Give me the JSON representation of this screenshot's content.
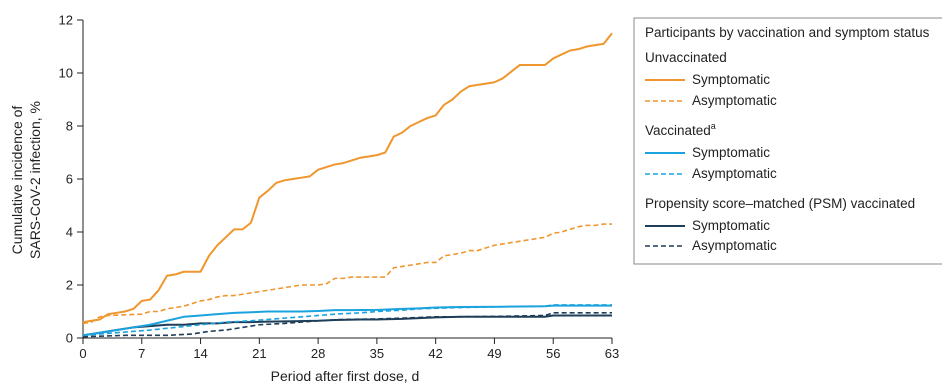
{
  "chart_data": {
    "type": "line",
    "xlabel": "Period after first dose, d",
    "ylabel_line1": "Cumulative incidence of",
    "ylabel_line2": "SARS-CoV-2 infection, %",
    "xticks": [
      "0",
      "7",
      "14",
      "21",
      "28",
      "35",
      "42",
      "49",
      "56",
      "63"
    ],
    "yticks": [
      "0",
      "2",
      "4",
      "6",
      "8",
      "10",
      "12"
    ],
    "xlim": [
      0,
      63
    ],
    "ylim": [
      0,
      12
    ],
    "grid": false,
    "legend_placement": "right",
    "legend": {
      "title": "Participants by vaccination and symptom status",
      "groups": [
        {
          "label": "Unvaccinated",
          "superscript": ""
        },
        {
          "label": "Vaccinated",
          "superscript": "a"
        },
        {
          "label": "Propensity score–matched (PSM) vaccinated",
          "superscript": ""
        }
      ],
      "entry_symptomatic": "Symptomatic",
      "entry_asymptomatic": "Asymptomatic"
    },
    "series": [
      {
        "name": "Symptomatic",
        "group": "Unvaccinated",
        "color": "#F0962E",
        "dash": "solid",
        "x": [
          0,
          2,
          3,
          4,
          5,
          6,
          7,
          8,
          9,
          10,
          11,
          12,
          13,
          14,
          15,
          16,
          17,
          18,
          19,
          20,
          21,
          22,
          23,
          24,
          25,
          26,
          27,
          28,
          29,
          30,
          31,
          32,
          33,
          34,
          35,
          36,
          37,
          38,
          39,
          40,
          41,
          42,
          43,
          44,
          45,
          46,
          47,
          48,
          49,
          50,
          51,
          52,
          53,
          54,
          55,
          56,
          57,
          58,
          59,
          60,
          61,
          62,
          63
        ],
        "y": [
          0.6,
          0.7,
          0.9,
          0.95,
          1.0,
          1.1,
          1.4,
          1.45,
          1.8,
          2.35,
          2.4,
          2.5,
          2.5,
          2.5,
          3.1,
          3.5,
          3.8,
          4.1,
          4.1,
          4.35,
          5.3,
          5.55,
          5.85,
          5.95,
          6.0,
          6.05,
          6.1,
          6.35,
          6.45,
          6.55,
          6.6,
          6.7,
          6.8,
          6.85,
          6.9,
          7.0,
          7.6,
          7.75,
          8.0,
          8.15,
          8.3,
          8.4,
          8.8,
          9.0,
          9.3,
          9.5,
          9.55,
          9.6,
          9.65,
          9.8,
          10.05,
          10.3,
          10.3,
          10.3,
          10.3,
          10.55,
          10.7,
          10.85,
          10.9,
          11.0,
          11.05,
          11.1,
          11.5
        ]
      },
      {
        "name": "Asymptomatic",
        "group": "Unvaccinated",
        "color": "#F0962E",
        "dash": "dashed",
        "x": [
          0,
          1,
          2,
          3,
          7,
          8,
          9,
          10,
          11,
          12,
          13,
          14,
          15,
          16,
          17,
          18,
          19,
          20,
          21,
          22,
          23,
          24,
          25,
          26,
          27,
          28,
          29,
          30,
          31,
          32,
          33,
          34,
          35,
          36,
          37,
          38,
          39,
          40,
          41,
          42,
          43,
          44,
          45,
          46,
          47,
          48,
          49,
          50,
          51,
          52,
          53,
          54,
          55,
          56,
          57,
          58,
          59,
          60,
          61,
          62,
          63
        ],
        "y": [
          0.55,
          0.6,
          0.8,
          0.85,
          0.9,
          1.0,
          1.0,
          1.1,
          1.15,
          1.2,
          1.3,
          1.4,
          1.45,
          1.55,
          1.6,
          1.6,
          1.65,
          1.7,
          1.75,
          1.8,
          1.85,
          1.9,
          1.95,
          2.0,
          2.0,
          2.0,
          2.05,
          2.25,
          2.25,
          2.3,
          2.3,
          2.3,
          2.3,
          2.3,
          2.65,
          2.7,
          2.75,
          2.8,
          2.85,
          2.85,
          3.1,
          3.15,
          3.2,
          3.3,
          3.3,
          3.4,
          3.5,
          3.55,
          3.6,
          3.65,
          3.7,
          3.75,
          3.8,
          3.95,
          4.0,
          4.1,
          4.2,
          4.25,
          4.25,
          4.3,
          4.3
        ]
      },
      {
        "name": "Symptomatic",
        "group": "Vaccinated",
        "color": "#1BA3DE",
        "dash": "solid",
        "x": [
          0,
          2,
          4,
          6,
          8,
          10,
          12,
          14,
          16,
          18,
          20,
          22,
          24,
          26,
          28,
          30,
          32,
          35,
          38,
          40,
          42,
          45,
          50,
          55,
          56,
          60,
          63
        ],
        "y": [
          0.1,
          0.2,
          0.3,
          0.4,
          0.5,
          0.65,
          0.8,
          0.85,
          0.9,
          0.95,
          0.97,
          1.0,
          1.0,
          1.0,
          1.02,
          1.05,
          1.05,
          1.06,
          1.1,
          1.12,
          1.15,
          1.17,
          1.18,
          1.2,
          1.22,
          1.22,
          1.22
        ]
      },
      {
        "name": "Asymptomatic",
        "group": "Vaccinated",
        "color": "#1BA3DE",
        "dash": "dashed",
        "x": [
          0,
          4,
          8,
          11,
          14,
          17,
          20,
          22,
          24,
          26,
          28,
          30,
          33,
          35,
          38,
          40,
          42,
          45,
          50,
          55,
          56,
          60,
          63
        ],
        "y": [
          0.1,
          0.2,
          0.3,
          0.4,
          0.5,
          0.6,
          0.65,
          0.7,
          0.75,
          0.8,
          0.85,
          0.9,
          0.95,
          1.0,
          1.05,
          1.1,
          1.12,
          1.15,
          1.18,
          1.2,
          1.25,
          1.25,
          1.25
        ]
      },
      {
        "name": "Symptomatic",
        "group": "Propensity score–matched (PSM) vaccinated",
        "color": "#1E3D59",
        "dash": "solid",
        "x": [
          0,
          2,
          4,
          6,
          8,
          10,
          12,
          14,
          16,
          18,
          20,
          22,
          25,
          28,
          30,
          33,
          35,
          38,
          40,
          42,
          45,
          50,
          55,
          56,
          60,
          63
        ],
        "y": [
          0.1,
          0.2,
          0.3,
          0.4,
          0.45,
          0.5,
          0.5,
          0.55,
          0.55,
          0.6,
          0.6,
          0.62,
          0.63,
          0.65,
          0.68,
          0.7,
          0.7,
          0.72,
          0.75,
          0.78,
          0.8,
          0.8,
          0.8,
          0.85,
          0.85,
          0.85
        ]
      },
      {
        "name": "Asymptomatic",
        "group": "Propensity score–matched (PSM) vaccinated",
        "color": "#1E3D59",
        "dash": "dashed",
        "x": [
          0,
          5,
          10,
          13,
          15,
          17,
          19,
          21,
          24,
          26,
          28,
          31,
          35,
          38,
          42,
          45,
          50,
          55,
          56,
          60,
          63
        ],
        "y": [
          0.05,
          0.1,
          0.1,
          0.15,
          0.25,
          0.3,
          0.4,
          0.5,
          0.55,
          0.6,
          0.65,
          0.7,
          0.72,
          0.75,
          0.8,
          0.8,
          0.82,
          0.85,
          0.95,
          0.95,
          0.95
        ]
      }
    ]
  }
}
